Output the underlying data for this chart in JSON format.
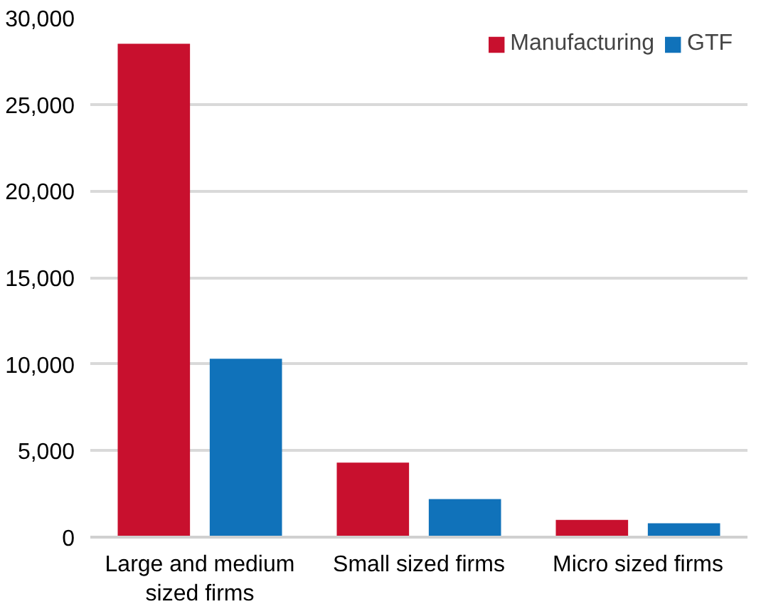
{
  "chart_data": {
    "type": "bar",
    "categories": [
      "Large and medium sized firms",
      "Small sized firms",
      "Micro sized firms"
    ],
    "series": [
      {
        "name": "Manufacturing",
        "color": "#c8102e",
        "values": [
          28500,
          4300,
          1000
        ]
      },
      {
        "name": "GTF",
        "color": "#1072ba",
        "values": [
          10300,
          2200,
          800
        ]
      }
    ],
    "ylim": [
      0,
      30000
    ],
    "yticks": [
      {
        "value": 0,
        "label": "0"
      },
      {
        "value": 5000,
        "label": "5,000"
      },
      {
        "value": 10000,
        "label": "10,000"
      },
      {
        "value": 15000,
        "label": "15,000"
      },
      {
        "value": 20000,
        "label": "20,000"
      },
      {
        "value": 25000,
        "label": "25,000"
      },
      {
        "value": 30000,
        "label": "30,000"
      }
    ],
    "grid": "y",
    "legend": "top right"
  }
}
